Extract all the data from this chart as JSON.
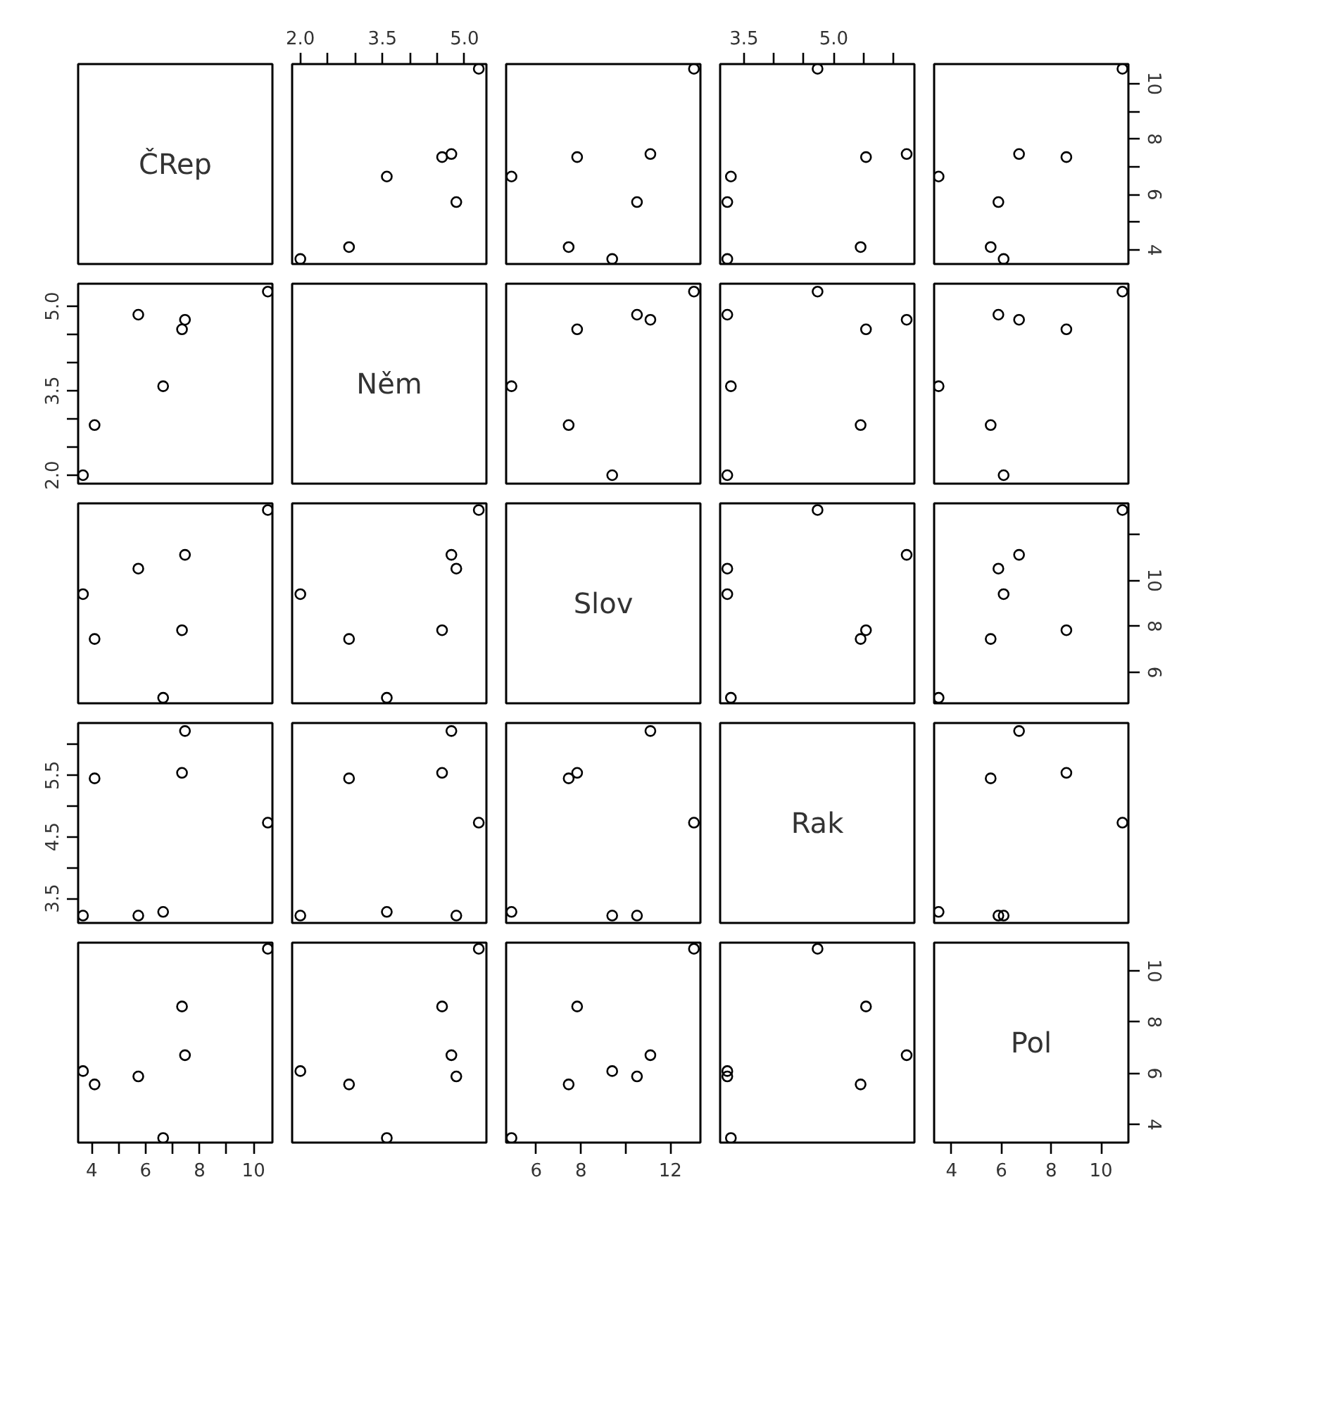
{
  "chart_data": [
    {
      "type": "other",
      "title": "ČRep"
    },
    {
      "type": "scatter",
      "x": [
        2.0,
        2.89,
        4.85,
        3.58,
        4.59,
        4.76,
        5.26
      ],
      "xlim": [
        1.85,
        5.4
      ],
      "ylim": [
        3.5,
        10.7
      ],
      "marker": "circle",
      "tick_labels": "x",
      "xticks": [
        {
          "value": 2,
          "label": "2.0"
        },
        {
          "value": 2.5,
          "label": null
        },
        {
          "value": 3,
          "label": null
        },
        3.5,
        {
          "value": 4,
          "label": null
        },
        {
          "value": 4.5,
          "label": null
        },
        {
          "value": 5,
          "label": "5.0"
        }
      ],
      "series": [
        {
          "color": "#000000",
          "values": [
            3.68,
            4.11,
            5.73,
            6.65,
            7.35,
            7.46,
            10.53
          ]
        }
      ]
    },
    {
      "type": "scatter",
      "x": [
        9.4,
        7.45,
        10.51,
        4.89,
        7.83,
        11.11,
        13.06
      ],
      "xlim": [
        4.65,
        13.35
      ],
      "ylim": [
        3.5,
        10.7
      ],
      "marker": "circle",
      "tick_labels": false,
      "series": [
        {
          "color": "#000000",
          "values": [
            3.68,
            4.11,
            5.73,
            6.65,
            7.35,
            7.46,
            10.53
          ]
        }
      ]
    },
    {
      "type": "scatter",
      "x": [
        3.22,
        5.45,
        3.22,
        3.28,
        5.54,
        6.22,
        4.73
      ],
      "xlim": [
        3.1,
        6.35
      ],
      "ylim": [
        3.5,
        10.7
      ],
      "marker": "circle",
      "tick_labels": "x",
      "xticks": [
        3.5,
        {
          "value": 4,
          "label": null
        },
        {
          "value": 4.5,
          "label": null
        },
        {
          "value": 5,
          "label": "5.0"
        },
        {
          "value": 5.5,
          "label": null
        },
        {
          "value": 6,
          "label": null
        }
      ],
      "series": [
        {
          "color": "#000000",
          "values": [
            3.68,
            4.11,
            5.73,
            6.65,
            7.35,
            7.46,
            10.53
          ]
        }
      ]
    },
    {
      "type": "scatter",
      "x": [
        6.09,
        5.57,
        5.88,
        3.48,
        8.61,
        6.71,
        10.86
      ],
      "xlim": [
        3.3,
        11.1
      ],
      "ylim": [
        3.5,
        10.7
      ],
      "marker": "circle",
      "tick_labels": "y",
      "yticks": [
        4,
        {
          "value": 5,
          "label": null
        },
        6,
        {
          "value": 7,
          "label": null
        },
        8,
        {
          "value": 9,
          "label": null
        },
        10
      ],
      "series": [
        {
          "color": "#000000",
          "values": [
            3.68,
            4.11,
            5.73,
            6.65,
            7.35,
            7.46,
            10.53
          ]
        }
      ]
    },
    {
      "type": "scatter",
      "x": [
        3.68,
        4.11,
        5.73,
        6.65,
        7.35,
        7.46,
        10.53
      ],
      "xlim": [
        3.5,
        10.7
      ],
      "ylim": [
        1.85,
        5.4
      ],
      "marker": "circle",
      "tick_labels": "y",
      "yticks": [
        {
          "value": 2,
          "label": "2.0"
        },
        {
          "value": 2.5,
          "label": null
        },
        {
          "value": 3,
          "label": null
        },
        3.5,
        {
          "value": 4,
          "label": null
        },
        {
          "value": 4.5,
          "label": null
        },
        {
          "value": 5,
          "label": "5.0"
        }
      ],
      "series": [
        {
          "color": "#000000",
          "values": [
            2.0,
            2.89,
            4.85,
            3.58,
            4.59,
            4.76,
            5.26
          ]
        }
      ]
    },
    {
      "type": "other",
      "title": "Něm"
    },
    {
      "type": "scatter",
      "x": [
        9.4,
        7.45,
        10.51,
        4.89,
        7.83,
        11.11,
        13.06
      ],
      "xlim": [
        4.65,
        13.35
      ],
      "ylim": [
        1.85,
        5.4
      ],
      "marker": "circle",
      "tick_labels": false,
      "series": [
        {
          "color": "#000000",
          "values": [
            2.0,
            2.89,
            4.85,
            3.58,
            4.59,
            4.76,
            5.26
          ]
        }
      ]
    },
    {
      "type": "scatter",
      "x": [
        3.22,
        5.45,
        3.22,
        3.28,
        5.54,
        6.22,
        4.73
      ],
      "xlim": [
        3.1,
        6.35
      ],
      "ylim": [
        1.85,
        5.4
      ],
      "marker": "circle",
      "tick_labels": false,
      "series": [
        {
          "color": "#000000",
          "values": [
            2.0,
            2.89,
            4.85,
            3.58,
            4.59,
            4.76,
            5.26
          ]
        }
      ]
    },
    {
      "type": "scatter",
      "x": [
        6.09,
        5.57,
        5.88,
        3.48,
        8.61,
        6.71,
        10.86
      ],
      "xlim": [
        3.3,
        11.1
      ],
      "ylim": [
        1.85,
        5.4
      ],
      "marker": "circle",
      "tick_labels": false,
      "series": [
        {
          "color": "#000000",
          "values": [
            2.0,
            2.89,
            4.85,
            3.58,
            4.59,
            4.76,
            5.26
          ]
        }
      ]
    },
    {
      "type": "scatter",
      "x": [
        3.68,
        4.11,
        5.73,
        6.65,
        7.35,
        7.46,
        10.53
      ],
      "xlim": [
        3.5,
        10.7
      ],
      "ylim": [
        4.65,
        13.35
      ],
      "marker": "circle",
      "tick_labels": false,
      "series": [
        {
          "color": "#000000",
          "values": [
            9.4,
            7.45,
            10.51,
            4.89,
            7.83,
            11.11,
            13.06
          ]
        }
      ]
    },
    {
      "type": "scatter",
      "x": [
        2.0,
        2.89,
        4.85,
        3.58,
        4.59,
        4.76,
        5.26
      ],
      "xlim": [
        1.85,
        5.4
      ],
      "ylim": [
        4.65,
        13.35
      ],
      "marker": "circle",
      "tick_labels": false,
      "series": [
        {
          "color": "#000000",
          "values": [
            9.4,
            7.45,
            10.51,
            4.89,
            7.83,
            11.11,
            13.06
          ]
        }
      ]
    },
    {
      "type": "other",
      "title": "Slov"
    },
    {
      "type": "scatter",
      "x": [
        3.22,
        5.45,
        3.22,
        3.28,
        5.54,
        6.22,
        4.73
      ],
      "xlim": [
        3.1,
        6.35
      ],
      "ylim": [
        4.65,
        13.35
      ],
      "marker": "circle",
      "tick_labels": false,
      "series": [
        {
          "color": "#000000",
          "values": [
            9.4,
            7.45,
            10.51,
            4.89,
            7.83,
            11.11,
            13.06
          ]
        }
      ]
    },
    {
      "type": "scatter",
      "x": [
        6.09,
        5.57,
        5.88,
        3.48,
        8.61,
        6.71,
        10.86
      ],
      "xlim": [
        3.3,
        11.1
      ],
      "ylim": [
        4.65,
        13.35
      ],
      "marker": "circle",
      "tick_labels": "y",
      "yticks": [
        6,
        8,
        10,
        {
          "value": 12,
          "label": null
        }
      ],
      "series": [
        {
          "color": "#000000",
          "values": [
            9.4,
            7.45,
            10.51,
            4.89,
            7.83,
            11.11,
            13.06
          ]
        }
      ]
    },
    {
      "type": "scatter",
      "x": [
        3.68,
        4.11,
        5.73,
        6.65,
        7.35,
        7.46,
        10.53
      ],
      "xlim": [
        3.5,
        10.7
      ],
      "ylim": [
        3.1,
        6.35
      ],
      "marker": "circle",
      "tick_labels": "y",
      "yticks": [
        3.5,
        {
          "value": 4,
          "label": null
        },
        4.5,
        {
          "value": 5,
          "label": null
        },
        5.5,
        {
          "value": 6,
          "label": null
        }
      ],
      "series": [
        {
          "color": "#000000",
          "values": [
            3.22,
            5.45,
            3.22,
            3.28,
            5.54,
            6.22,
            4.73
          ]
        }
      ]
    },
    {
      "type": "scatter",
      "x": [
        2.0,
        2.89,
        4.85,
        3.58,
        4.59,
        4.76,
        5.26
      ],
      "xlim": [
        1.85,
        5.4
      ],
      "ylim": [
        3.1,
        6.35
      ],
      "marker": "circle",
      "tick_labels": false,
      "series": [
        {
          "color": "#000000",
          "values": [
            3.22,
            5.45,
            3.22,
            3.28,
            5.54,
            6.22,
            4.73
          ]
        }
      ]
    },
    {
      "type": "scatter",
      "x": [
        9.4,
        7.45,
        10.51,
        4.89,
        7.83,
        11.11,
        13.06
      ],
      "xlim": [
        4.65,
        13.35
      ],
      "ylim": [
        3.1,
        6.35
      ],
      "marker": "circle",
      "tick_labels": false,
      "series": [
        {
          "color": "#000000",
          "values": [
            3.22,
            5.45,
            3.22,
            3.28,
            5.54,
            6.22,
            4.73
          ]
        }
      ]
    },
    {
      "type": "other",
      "title": "Rak"
    },
    {
      "type": "scatter",
      "x": [
        6.09,
        5.57,
        5.88,
        3.48,
        8.61,
        6.71,
        10.86
      ],
      "xlim": [
        3.3,
        11.1
      ],
      "ylim": [
        3.1,
        6.35
      ],
      "marker": "circle",
      "tick_labels": false,
      "series": [
        {
          "color": "#000000",
          "values": [
            3.22,
            5.45,
            3.22,
            3.28,
            5.54,
            6.22,
            4.73
          ]
        }
      ]
    },
    {
      "type": "scatter",
      "x": [
        3.68,
        4.11,
        5.73,
        6.65,
        7.35,
        7.46,
        10.53
      ],
      "xlim": [
        3.5,
        10.7
      ],
      "ylim": [
        3.3,
        11.1
      ],
      "marker": "circle",
      "tick_labels": "x",
      "xticks": [
        4,
        {
          "value": 5,
          "label": null
        },
        6,
        {
          "value": 7,
          "label": null
        },
        8,
        {
          "value": 9,
          "label": null
        },
        10
      ],
      "series": [
        {
          "color": "#000000",
          "values": [
            6.09,
            5.57,
            5.88,
            3.48,
            8.61,
            6.71,
            10.86
          ]
        }
      ]
    },
    {
      "type": "scatter",
      "x": [
        2.0,
        2.89,
        4.85,
        3.58,
        4.59,
        4.76,
        5.26
      ],
      "xlim": [
        1.85,
        5.4
      ],
      "ylim": [
        3.3,
        11.1
      ],
      "marker": "circle",
      "tick_labels": false,
      "series": [
        {
          "color": "#000000",
          "values": [
            6.09,
            5.57,
            5.88,
            3.48,
            8.61,
            6.71,
            10.86
          ]
        }
      ]
    },
    {
      "type": "scatter",
      "x": [
        9.4,
        7.45,
        10.51,
        4.89,
        7.83,
        11.11,
        13.06
      ],
      "xlim": [
        4.65,
        13.35
      ],
      "ylim": [
        3.3,
        11.1
      ],
      "marker": "circle",
      "tick_labels": "x",
      "xticks": [
        6,
        8,
        {
          "value": 10,
          "label": null
        },
        12
      ],
      "series": [
        {
          "color": "#000000",
          "values": [
            6.09,
            5.57,
            5.88,
            3.48,
            8.61,
            6.71,
            10.86
          ]
        }
      ]
    },
    {
      "type": "scatter",
      "x": [
        3.22,
        5.45,
        3.22,
        3.28,
        5.54,
        6.22,
        4.73
      ],
      "xlim": [
        3.1,
        6.35
      ],
      "ylim": [
        3.3,
        11.1
      ],
      "marker": "circle",
      "tick_labels": false,
      "series": [
        {
          "color": "#000000",
          "values": [
            6.09,
            5.57,
            5.88,
            3.48,
            8.61,
            6.71,
            10.86
          ]
        }
      ]
    },
    {
      "type": "scatter",
      "title": "Pol",
      "xlim": [
        3.3,
        11.1
      ],
      "ylim": [
        3.3,
        11.1
      ],
      "xticks": [
        4,
        6,
        8,
        10
      ],
      "yticks": [
        4,
        6,
        8,
        10
      ]
    }
  ]
}
